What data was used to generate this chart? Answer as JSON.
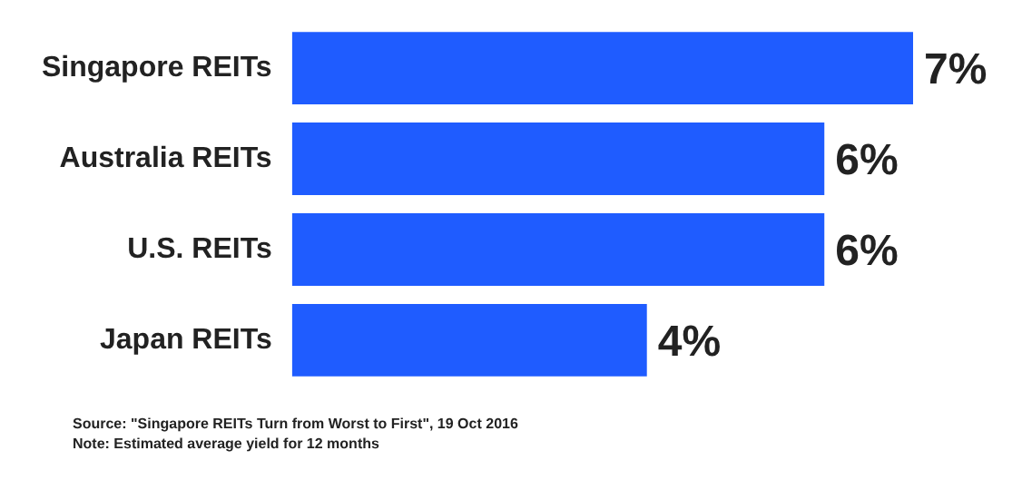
{
  "chart_data": {
    "type": "bar",
    "orientation": "horizontal",
    "categories": [
      "Singapore REITs",
      "Australia REITs",
      "U.S. REITs",
      "Japan REITs"
    ],
    "values": [
      7,
      6,
      6,
      4
    ],
    "value_labels": [
      "7%",
      "6%",
      "6%",
      "4%"
    ],
    "color": "#1f5cff",
    "legend": false,
    "tick_labels": "y",
    "annotations": [
      "Source: \"Singapore REITs Turn from Worst to First\", 19 Oct 2016",
      "Note: Estimated average yield for 12 months"
    ]
  }
}
